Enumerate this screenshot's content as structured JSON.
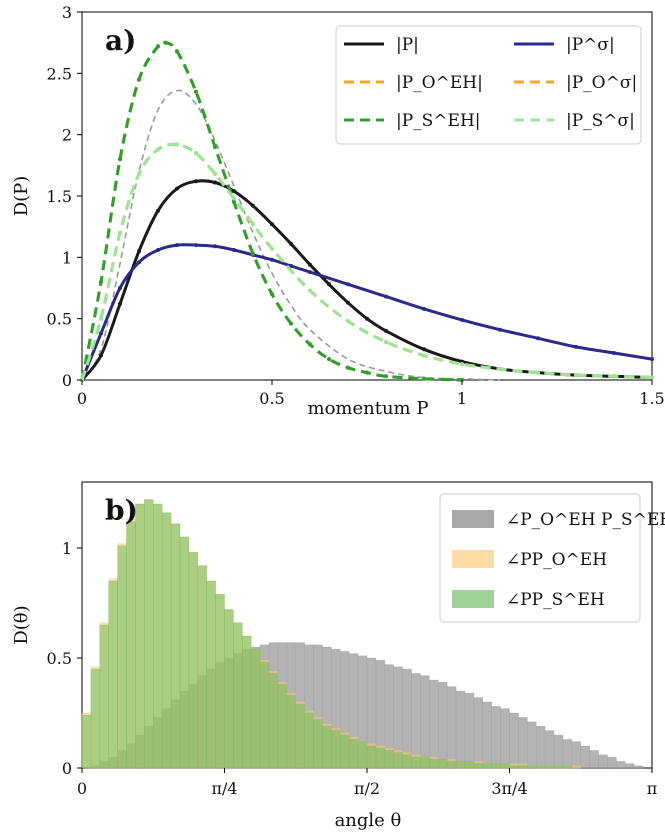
{
  "chart_data": [
    {
      "type": "line",
      "panel_label": "a)",
      "xlabel": "momentum P",
      "ylabel": "D(P)",
      "xlim": [
        0,
        1.5
      ],
      "ylim": [
        0,
        3
      ],
      "xticks": [
        "0",
        "0.5",
        "1",
        "1.5"
      ],
      "yticks": [
        "0",
        "0.5",
        "1",
        "1.5",
        "2",
        "2.5",
        "3"
      ],
      "x_tick_values": [
        0,
        0.5,
        1,
        1.5
      ],
      "y_tick_values": [
        0,
        0.5,
        1,
        1.5,
        2,
        2.5,
        3
      ],
      "legend_position": "top-right",
      "grid": false,
      "series": [
        {
          "name": "|P|",
          "color": "#1a1a1a",
          "style": "solid",
          "x": [
            0,
            0.05,
            0.1,
            0.15,
            0.2,
            0.25,
            0.3,
            0.35,
            0.4,
            0.45,
            0.5,
            0.55,
            0.6,
            0.65,
            0.7,
            0.75,
            0.8,
            0.9,
            1.0,
            1.1,
            1.2,
            1.3,
            1.4,
            1.5
          ],
          "values": [
            0,
            0.2,
            0.62,
            1.05,
            1.38,
            1.56,
            1.62,
            1.61,
            1.54,
            1.42,
            1.27,
            1.11,
            0.94,
            0.78,
            0.63,
            0.5,
            0.4,
            0.25,
            0.15,
            0.09,
            0.06,
            0.04,
            0.03,
            0.02
          ]
        },
        {
          "name": "|P^σ|",
          "color": "#2a2a8c",
          "style": "solid",
          "x": [
            0,
            0.05,
            0.1,
            0.15,
            0.2,
            0.25,
            0.3,
            0.35,
            0.4,
            0.45,
            0.5,
            0.55,
            0.6,
            0.7,
            0.8,
            0.9,
            1.0,
            1.1,
            1.2,
            1.3,
            1.4,
            1.5
          ],
          "values": [
            0,
            0.38,
            0.75,
            0.96,
            1.06,
            1.1,
            1.1,
            1.09,
            1.06,
            1.02,
            0.98,
            0.93,
            0.88,
            0.78,
            0.68,
            0.58,
            0.49,
            0.41,
            0.34,
            0.27,
            0.22,
            0.17
          ]
        },
        {
          "name": "|P_O^EH|",
          "color": "#f5a623",
          "style": "dashed",
          "x": [
            0,
            0.05,
            0.1,
            0.15,
            0.2,
            0.22,
            0.25,
            0.3,
            0.35,
            0.4,
            0.45,
            0.5,
            0.55,
            0.6,
            0.65,
            0.7,
            0.75,
            0.8,
            0.9,
            1.0
          ],
          "values": [
            0,
            0.8,
            1.8,
            2.45,
            2.72,
            2.75,
            2.68,
            2.35,
            1.9,
            1.45,
            1.03,
            0.7,
            0.46,
            0.29,
            0.17,
            0.1,
            0.06,
            0.03,
            0.01,
            0
          ]
        },
        {
          "name": "|P_O^σ|",
          "color": "#f5a623",
          "style": "dashed",
          "x": [
            0,
            0.05,
            0.1,
            0.15,
            0.2,
            0.25,
            0.3,
            0.35,
            0.4,
            0.45,
            0.5,
            0.6,
            0.7,
            0.8,
            0.9,
            1.0,
            1.1,
            1.2,
            1.3,
            1.4,
            1.5
          ],
          "values": [
            0,
            0.5,
            1.2,
            1.68,
            1.88,
            1.92,
            1.85,
            1.68,
            1.48,
            1.27,
            1.07,
            0.73,
            0.48,
            0.31,
            0.2,
            0.13,
            0.09,
            0.06,
            0.04,
            0.03,
            0.02
          ]
        },
        {
          "name": "|P_S^EH|",
          "color": "#2ca02c",
          "style": "dashed",
          "x": [
            0,
            0.05,
            0.1,
            0.15,
            0.2,
            0.22,
            0.25,
            0.3,
            0.35,
            0.4,
            0.45,
            0.5,
            0.55,
            0.6,
            0.65,
            0.7,
            0.75,
            0.8,
            0.9,
            1.0
          ],
          "values": [
            0,
            0.8,
            1.8,
            2.45,
            2.72,
            2.75,
            2.68,
            2.35,
            1.9,
            1.45,
            1.03,
            0.7,
            0.46,
            0.29,
            0.17,
            0.1,
            0.06,
            0.03,
            0.01,
            0
          ]
        },
        {
          "name": "|P_S^σ|",
          "color": "#98e698",
          "style": "dashed",
          "x": [
            0,
            0.05,
            0.1,
            0.15,
            0.2,
            0.25,
            0.3,
            0.35,
            0.4,
            0.45,
            0.5,
            0.6,
            0.7,
            0.8,
            0.9,
            1.0,
            1.1,
            1.2,
            1.3,
            1.4,
            1.5
          ],
          "values": [
            0,
            0.5,
            1.2,
            1.68,
            1.88,
            1.92,
            1.85,
            1.68,
            1.48,
            1.27,
            1.07,
            0.73,
            0.48,
            0.31,
            0.2,
            0.13,
            0.09,
            0.06,
            0.04,
            0.03,
            0.02
          ]
        }
      ],
      "unlabeled_reference_curve": {
        "color": "#999999",
        "style": "dashed",
        "x": [
          0,
          0.05,
          0.1,
          0.15,
          0.2,
          0.25,
          0.3,
          0.35,
          0.4,
          0.45,
          0.5,
          0.55,
          0.6,
          0.7,
          0.8,
          0.9,
          1.0,
          1.1
        ],
        "values": [
          0,
          0.25,
          0.95,
          1.7,
          2.2,
          2.36,
          2.25,
          1.95,
          1.58,
          1.2,
          0.87,
          0.61,
          0.41,
          0.17,
          0.07,
          0.02,
          0.01,
          0
        ]
      }
    },
    {
      "type": "bar",
      "panel_label": "b)",
      "xlabel": "angle θ",
      "ylabel": "D(θ)",
      "xlim": [
        0,
        3.1416
      ],
      "ylim": [
        0,
        1.3
      ],
      "xticks": [
        "0",
        "π/4",
        "π/2",
        "3π/4",
        "π"
      ],
      "x_tick_values": [
        0,
        0.7854,
        1.5708,
        2.3562,
        3.1416
      ],
      "yticks": [
        "0",
        "0.5",
        "1"
      ],
      "y_tick_values": [
        0,
        0.5,
        1
      ],
      "legend_position": "top-right",
      "bins": 64,
      "series": [
        {
          "name": "∠P_O^EH P_S^EH",
          "color": "#999999",
          "opacity": 0.75,
          "values": [
            0.0,
            0.01,
            0.03,
            0.05,
            0.08,
            0.11,
            0.15,
            0.19,
            0.23,
            0.27,
            0.31,
            0.35,
            0.38,
            0.42,
            0.45,
            0.48,
            0.5,
            0.52,
            0.54,
            0.55,
            0.56,
            0.57,
            0.57,
            0.57,
            0.57,
            0.56,
            0.56,
            0.55,
            0.54,
            0.53,
            0.52,
            0.51,
            0.5,
            0.49,
            0.47,
            0.46,
            0.45,
            0.43,
            0.42,
            0.4,
            0.39,
            0.37,
            0.35,
            0.34,
            0.32,
            0.3,
            0.28,
            0.27,
            0.25,
            0.23,
            0.21,
            0.19,
            0.17,
            0.15,
            0.13,
            0.12,
            0.1,
            0.08,
            0.06,
            0.05,
            0.03,
            0.02,
            0.01,
            0.0
          ]
        },
        {
          "name": "∠PP_O^EH",
          "color": "#f9c870",
          "opacity": 0.55,
          "values": [
            0.25,
            0.46,
            0.66,
            0.86,
            1.02,
            1.13,
            1.2,
            1.22,
            1.2,
            1.16,
            1.11,
            1.05,
            0.98,
            0.92,
            0.85,
            0.79,
            0.72,
            0.66,
            0.6,
            0.54,
            0.49,
            0.44,
            0.39,
            0.34,
            0.3,
            0.26,
            0.23,
            0.2,
            0.18,
            0.16,
            0.14,
            0.12,
            0.11,
            0.1,
            0.09,
            0.08,
            0.07,
            0.06,
            0.05,
            0.05,
            0.04,
            0.04,
            0.03,
            0.03,
            0.03,
            0.02,
            0.02,
            0.02,
            0.02,
            0.02,
            0.01,
            0.01,
            0.01,
            0.01,
            0.01,
            0.01,
            0.0,
            0.0,
            0.0,
            0.0,
            0.0,
            0.0,
            0.0,
            0.0
          ]
        },
        {
          "name": "∠PP_S^EH",
          "color": "#6abf5e",
          "opacity": 0.55,
          "values": [
            0.24,
            0.45,
            0.65,
            0.85,
            1.01,
            1.12,
            1.2,
            1.22,
            1.2,
            1.16,
            1.11,
            1.05,
            0.98,
            0.92,
            0.85,
            0.79,
            0.72,
            0.66,
            0.6,
            0.54,
            0.48,
            0.43,
            0.38,
            0.33,
            0.29,
            0.25,
            0.22,
            0.19,
            0.17,
            0.15,
            0.13,
            0.12,
            0.1,
            0.09,
            0.08,
            0.07,
            0.06,
            0.05,
            0.05,
            0.04,
            0.04,
            0.03,
            0.03,
            0.03,
            0.02,
            0.02,
            0.02,
            0.02,
            0.01,
            0.01,
            0.01,
            0.01,
            0.01,
            0.01,
            0.01,
            0.0,
            0.0,
            0.0,
            0.0,
            0.0,
            0.0,
            0.0,
            0.0,
            0.0
          ]
        }
      ]
    }
  ]
}
